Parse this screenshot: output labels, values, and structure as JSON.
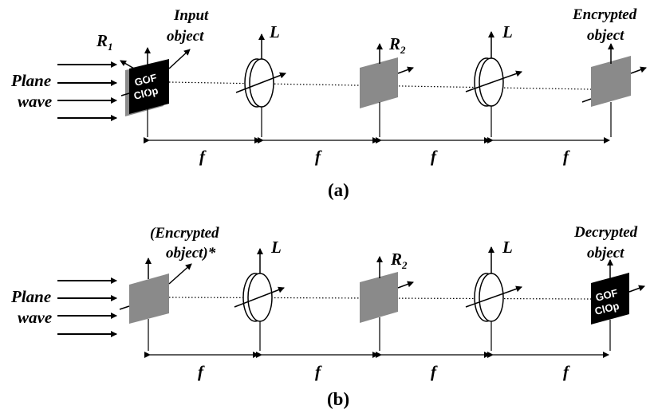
{
  "panel_a": {
    "caption": "(a)",
    "plane_wave_line1": "Plane",
    "plane_wave_line2": "wave",
    "r1_main": "R",
    "r1_sub": "1",
    "input_line1": "Input",
    "input_line2": "object",
    "object_text_line1": "GOF",
    "object_text_line2": "ClOp",
    "lens1_label": "L",
    "r2_main": "R",
    "r2_sub": "2",
    "lens2_label": "L",
    "output_line1": "Encrypted",
    "output_line2": "object",
    "f_labels": [
      "f",
      "f",
      "f",
      "f"
    ]
  },
  "panel_b": {
    "caption": "(b)",
    "plane_wave_line1": "Plane",
    "plane_wave_line2": "wave",
    "input_line1": "(Encrypted",
    "input_line2": "object)*",
    "lens1_label": "L",
    "r2_main": "R",
    "r2_sub": "2",
    "lens2_label": "L",
    "output_line1": "Decrypted",
    "output_line2": "object",
    "object_text_line1": "GOF",
    "object_text_line2": "ClOp",
    "f_labels": [
      "f",
      "f",
      "f",
      "f"
    ]
  },
  "colors": {
    "plate_gray": "#8a8a8a",
    "plate_black": "#000000",
    "line": "#000000"
  }
}
